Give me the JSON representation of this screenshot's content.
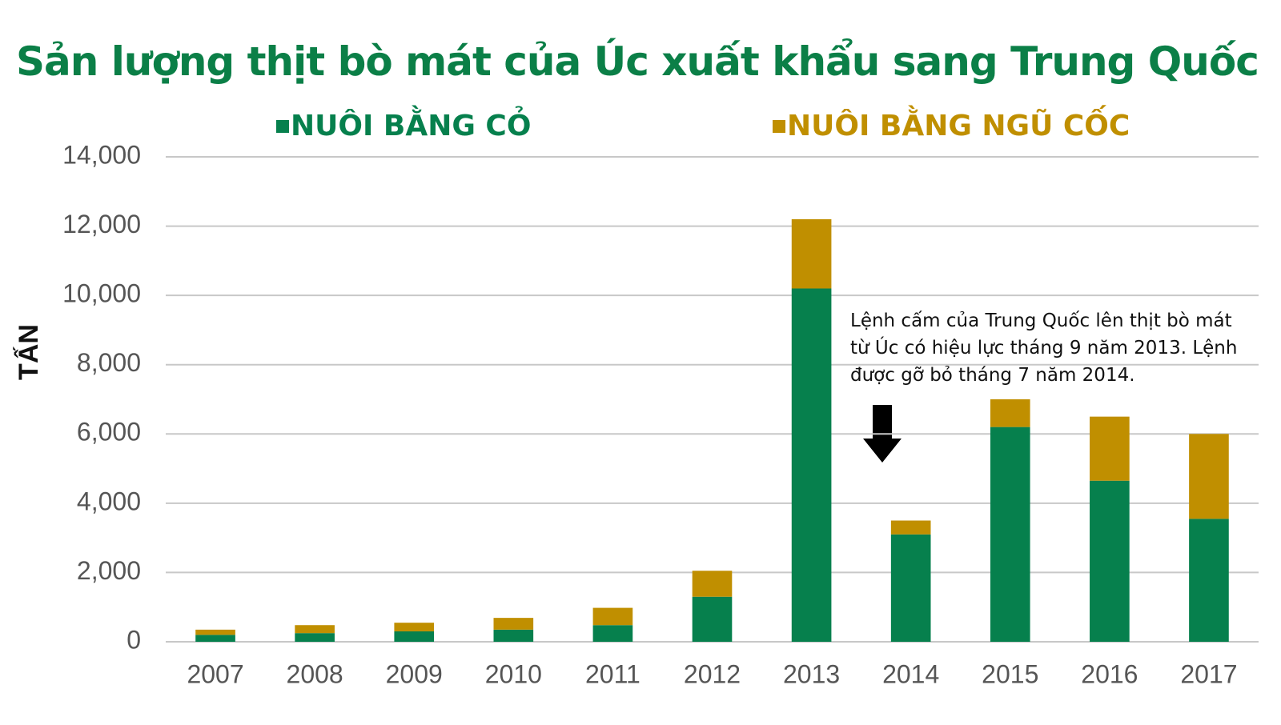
{
  "chart_data": {
    "type": "stacked_bar",
    "title": "Sản lượng thịt bò mát của Úc xuất khẩu sang Trung Quốc",
    "y_label": "TẤN",
    "categories": [
      "2007",
      "2008",
      "2009",
      "2010",
      "2011",
      "2012",
      "2013",
      "2014",
      "2015",
      "2016",
      "2017"
    ],
    "series": [
      {
        "name": "NUÔI BẰNG CỎ",
        "color": "#06804d",
        "values": [
          200,
          250,
          300,
          350,
          480,
          1300,
          10200,
          3100,
          6200,
          4650,
          3550
        ]
      },
      {
        "name": "NUÔI BẰNG NGŨ CỐC",
        "color": "#c08f00",
        "values": [
          150,
          230,
          250,
          340,
          500,
          750,
          2000,
          400,
          800,
          1850,
          2450
        ]
      }
    ],
    "ylim": [
      0,
      14000
    ],
    "yticks": [
      0,
      {
        "value": 2000,
        "label": "2,000"
      },
      {
        "value": 4000,
        "label": "4,000"
      },
      {
        "value": 6000,
        "label": "6,000"
      },
      {
        "value": 8000,
        "label": "8,000"
      },
      {
        "value": 10000,
        "label": "10,000"
      },
      {
        "value": 12000,
        "label": "12,000"
      },
      {
        "value": 14000,
        "label": "14,000"
      }
    ],
    "grid": true,
    "annotation": "Lệnh cấm của Trung Quốc lên thịt bò mát từ Úc có hiệu lực tháng 9 năm 2013. Lệnh được gỡ bỏ tháng 7 năm 2014."
  }
}
